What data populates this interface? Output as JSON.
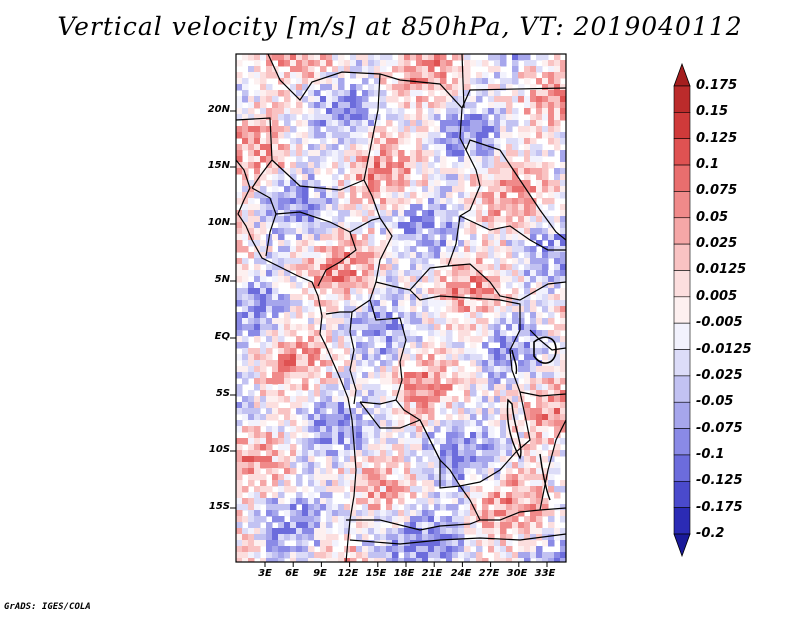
{
  "title": "Vertical velocity [m/s] at 850hPa, VT: 2019040112",
  "credit": "GrADS: IGES/COLA",
  "lat_labels": [
    "20N",
    "15N",
    "10N",
    "5N",
    "EQ",
    "5S",
    "10S",
    "15S"
  ],
  "lon_labels": [
    "3E",
    "6E",
    "9E",
    "12E",
    "15E",
    "18E",
    "21E",
    "24E",
    "27E",
    "30E",
    "33E"
  ],
  "colorbar": {
    "labels": [
      "0.175",
      "0.15",
      "0.125",
      "0.1",
      "0.075",
      "0.05",
      "0.025",
      "0.0125",
      "0.005",
      "-0.005",
      "-0.0125",
      "-0.025",
      "-0.05",
      "-0.075",
      "-0.1",
      "-0.125",
      "-0.175",
      "-0.2"
    ],
    "colors": [
      "#a51e1e",
      "#bb2b2b",
      "#cf3a3a",
      "#df5252",
      "#e96e6e",
      "#f08a8a",
      "#f5a7a7",
      "#f9c3c3",
      "#fcdede",
      "#fdf0f0",
      "#f2f2fd",
      "#dcdcf8",
      "#c2c2f2",
      "#a6a6ec",
      "#8a8ae6",
      "#6c6cdc",
      "#4a4acc",
      "#2b2bb5",
      "#1a1a9a"
    ]
  }
}
